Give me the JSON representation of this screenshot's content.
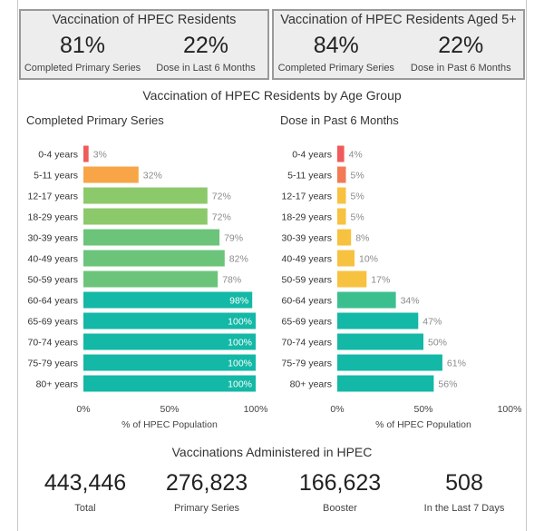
{
  "kpi_left": {
    "title": "Vaccination of HPEC Residents",
    "metrics": [
      {
        "value": "81%",
        "label": "Completed Primary Series"
      },
      {
        "value": "22%",
        "label": "Dose in Last 6 Months"
      }
    ]
  },
  "kpi_right": {
    "title": "Vaccination of HPEC Residents Aged 5+",
    "metrics": [
      {
        "value": "84%",
        "label": "Completed Primary Series"
      },
      {
        "value": "22%",
        "label": "Dose in Past 6 Months"
      }
    ]
  },
  "age_section_title": "Vaccination of HPEC Residents by Age Group",
  "chart_data": [
    {
      "type": "bar",
      "orientation": "horizontal",
      "title": "Completed Primary Series",
      "categories": [
        "0-4 years",
        "5-11 years",
        "12-17 years",
        "18-29 years",
        "30-39 years",
        "40-49 years",
        "50-59 years",
        "60-64 years",
        "65-69 years",
        "70-74 years",
        "75-79 years",
        "80+ years"
      ],
      "values": [
        3,
        32,
        72,
        72,
        79,
        82,
        78,
        98,
        100,
        100,
        100,
        100
      ],
      "data_labels": [
        "3%",
        "32%",
        "72%",
        "72%",
        "79%",
        "82%",
        "78%",
        "98%",
        "100%",
        "100%",
        "100%",
        "100%"
      ],
      "bar_colors": [
        "#f05a5a",
        "#f7a547",
        "#8cc96a",
        "#8cc96a",
        "#6cc47a",
        "#6cc47a",
        "#6cc47a",
        "#13b8a6",
        "#13b8a6",
        "#13b8a6",
        "#13b8a6",
        "#13b8a6"
      ],
      "xlim": [
        0,
        100
      ],
      "xticks": [
        "0%",
        "50%",
        "100%"
      ],
      "xlabel": "% of HPEC Population"
    },
    {
      "type": "bar",
      "orientation": "horizontal",
      "title": "Dose in Past 6 Months",
      "categories": [
        "0-4 years",
        "5-11 years",
        "12-17 years",
        "18-29 years",
        "30-39 years",
        "40-49 years",
        "50-59 years",
        "60-64 years",
        "65-69 years",
        "70-74 years",
        "75-79 years",
        "80+ years"
      ],
      "values": [
        4,
        5,
        5,
        5,
        8,
        10,
        17,
        34,
        47,
        50,
        61,
        56
      ],
      "data_labels": [
        "4%",
        "5%",
        "5%",
        "5%",
        "8%",
        "10%",
        "17%",
        "34%",
        "47%",
        "50%",
        "61%",
        "56%"
      ],
      "bar_colors": [
        "#f05a5a",
        "#f27b55",
        "#f7c240",
        "#f7c240",
        "#f7c240",
        "#f7c240",
        "#f7c240",
        "#3cbf8f",
        "#13b8a6",
        "#13b8a6",
        "#13b8a6",
        "#13b8a6"
      ],
      "xlim": [
        0,
        100
      ],
      "xticks": [
        "0%",
        "50%",
        "100%"
      ],
      "xlabel": "% of HPEC Population"
    }
  ],
  "totals_title": "Vaccinations Administered in HPEC",
  "totals": [
    {
      "value": "443,446",
      "label": "Total"
    },
    {
      "value": "276,823",
      "label": "Primary Series"
    },
    {
      "value": "166,623",
      "label": "Booster"
    },
    {
      "value": "508",
      "label": "In the Last 7 Days"
    }
  ]
}
